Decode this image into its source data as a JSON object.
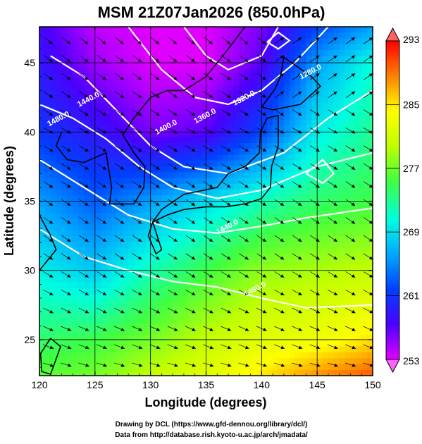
{
  "chart_data": {
    "type": "heatmap",
    "title": "MSM 21Z07Jan2026 (850.0hPa)",
    "xlabel": "Longitude (degrees)",
    "ylabel": "Latitude  (degrees)",
    "xlim": [
      120,
      150
    ],
    "ylim": [
      22.4,
      47.6
    ],
    "x_ticks": [
      120,
      125,
      130,
      135,
      140,
      145,
      150
    ],
    "y_ticks": [
      25,
      30,
      35,
      40,
      45
    ],
    "grid": "on",
    "colorbar": {
      "min": 253,
      "max": 293,
      "ticks": [
        253,
        261,
        269,
        277,
        285,
        293
      ],
      "palette": [
        "#e000ff",
        "#4b00ff",
        "#0040ff",
        "#00a8ff",
        "#00ffe0",
        "#40ff40",
        "#c0ff00",
        "#ffff00",
        "#ff8000",
        "#ff0000"
      ]
    },
    "temperature_field": {
      "lon": [
        120,
        125,
        130,
        135,
        140,
        145,
        150
      ],
      "lat": [
        47.6,
        45,
        40,
        35,
        30,
        25,
        22.4
      ],
      "values": [
        [
          258,
          254,
          253,
          253,
          256,
          262,
          266
        ],
        [
          259,
          255,
          253,
          253,
          257,
          266,
          271
        ],
        [
          261,
          259,
          256,
          257,
          262,
          270,
          273
        ],
        [
          266,
          263,
          266,
          269,
          272,
          274,
          275
        ],
        [
          270,
          268,
          272,
          275,
          278,
          279,
          280
        ],
        [
          274,
          275,
          277,
          280,
          282,
          283,
          285
        ],
        [
          276,
          277,
          280,
          282,
          285,
          288,
          290
        ]
      ]
    },
    "contour_labels": [
      {
        "text": "1440.0",
        "lon": 124.5,
        "lat": 42.2
      },
      {
        "text": "1480.0",
        "lon": 121.8,
        "lat": 40.8
      },
      {
        "text": "1400.0",
        "lon": 131.5,
        "lat": 40.2
      },
      {
        "text": "1360.0",
        "lon": 135.0,
        "lat": 41.0
      },
      {
        "text": "1320.0",
        "lon": 138.5,
        "lat": 42.3
      },
      {
        "text": "1280.0",
        "lon": 144.5,
        "lat": 44.2
      },
      {
        "text": "1440.0",
        "lon": 137.0,
        "lat": 33.0
      },
      {
        "text": "1480.0",
        "lon": 139.5,
        "lat": 28.5
      }
    ]
  },
  "footer": {
    "line1": "Drawing by DCL (https://www.gfd-dennou.org/library/dcl/)",
    "line2": "Data from http://database.rish.kyoto-u.ac.jp/arch/jmadata/"
  }
}
